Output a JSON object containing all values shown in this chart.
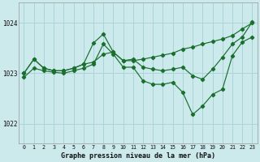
{
  "bg_color": "#cce9ec",
  "grid_color": "#aad4d8",
  "line_color": "#1a6e2e",
  "marker_color": "#1a6e2e",
  "title": "Graphe pression niveau de la mer (hPa)",
  "ylabel_ticks": [
    1022,
    1023,
    1024
  ],
  "xlim": [
    -0.5,
    23.5
  ],
  "ylim": [
    1021.6,
    1024.4
  ],
  "line1_x": [
    0,
    1,
    2,
    3,
    4,
    5,
    6,
    7,
    8,
    9,
    10,
    11,
    12,
    13,
    14,
    15,
    16,
    17,
    18,
    19,
    20,
    21,
    22,
    23
  ],
  "line1_y": [
    1023.0,
    1023.28,
    1023.1,
    1023.05,
    1023.05,
    1023.1,
    1023.18,
    1023.22,
    1023.38,
    1023.42,
    1023.25,
    1023.25,
    1023.28,
    1023.32,
    1023.36,
    1023.4,
    1023.48,
    1023.52,
    1023.58,
    1023.63,
    1023.68,
    1023.75,
    1023.88,
    1024.0
  ],
  "line2_x": [
    0,
    1,
    2,
    3,
    4,
    5,
    6,
    7,
    8,
    9,
    10,
    11,
    12,
    13,
    14,
    15,
    16,
    17,
    18,
    19,
    20,
    21,
    22,
    23
  ],
  "line2_y": [
    1023.0,
    1023.28,
    1023.1,
    1023.05,
    1023.05,
    1023.1,
    1023.18,
    1023.6,
    1023.78,
    1023.42,
    1023.25,
    1023.28,
    1023.12,
    1023.08,
    1023.05,
    1023.08,
    1023.12,
    1022.95,
    1022.88,
    1023.08,
    1023.32,
    1023.58,
    1023.72,
    1024.02
  ],
  "line3_x": [
    0,
    1,
    2,
    3,
    4,
    5,
    6,
    7,
    8,
    9,
    10,
    11,
    12,
    13,
    14,
    15,
    16,
    17,
    18,
    19,
    20,
    21,
    22,
    23
  ],
  "line3_y": [
    1022.92,
    1023.1,
    1023.05,
    1023.02,
    1023.0,
    1023.05,
    1023.1,
    1023.18,
    1023.58,
    1023.38,
    1023.12,
    1023.12,
    1022.85,
    1022.78,
    1022.78,
    1022.82,
    1022.62,
    1022.18,
    1022.35,
    1022.58,
    1022.68,
    1023.35,
    1023.62,
    1023.72
  ],
  "xtick_labels": [
    "0",
    "1",
    "2",
    "3",
    "4",
    "5",
    "6",
    "7",
    "8",
    "9",
    "10",
    "11",
    "12",
    "13",
    "14",
    "15",
    "16",
    "17",
    "18",
    "19",
    "20",
    "21",
    "22",
    "23"
  ]
}
